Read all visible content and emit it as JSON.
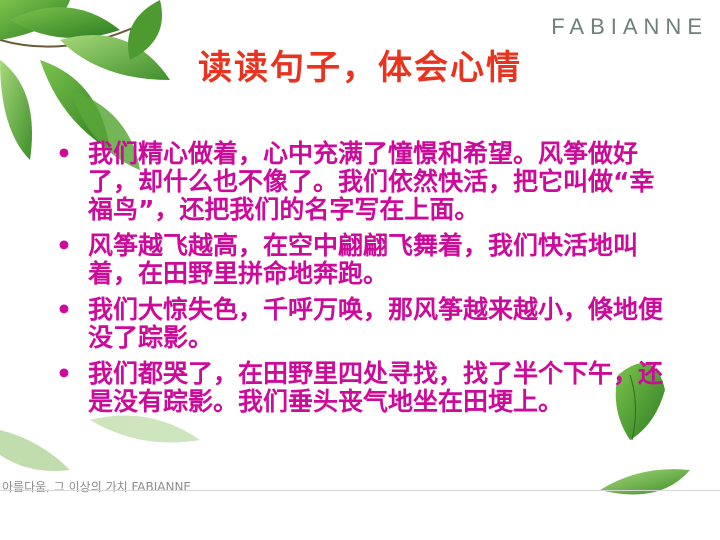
{
  "brand": {
    "logo_text": "FABIANNE"
  },
  "slide": {
    "title": "读读句子，体会心情",
    "bullet_glyph": "•",
    "paragraphs": [
      "我们精心做着，心中充满了憧憬和希望。风筝做好了，却什么也不像了。我们依然快活，把它叫做“幸福鸟”，还把我们的名字写在上面。",
      "风筝越飞越高，在空中翩翩飞舞着，我们快活地叫着，在田野里拼命地奔跑。",
      "我们大惊失色，千呼万唤，那风筝越来越小，倏地便没了踪影。",
      "我们都哭了，在田野里四处寻找，找了半个下午，还是没有踪影。我们垂头丧气地坐在田埂上。"
    ]
  },
  "footer": {
    "tagline": "아름다움, 그 이상의 가치 FABIANNE"
  },
  "colors": {
    "title": "#e8331f",
    "body_text": "#cc0b9a",
    "leaf": "#3f9a2d"
  }
}
